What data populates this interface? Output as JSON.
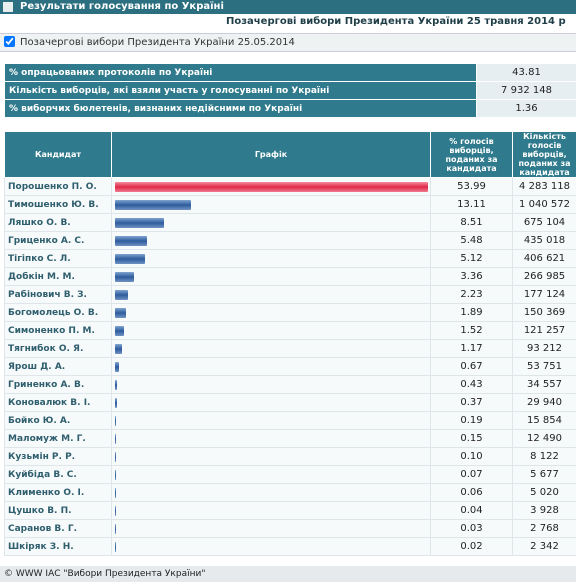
{
  "header": {
    "title": "Результати голосування по Україні",
    "election": "Позачергові вибори Президента України 25 травня 2014 р",
    "filter": "Позачергові вибори Президента України 25.05.2014"
  },
  "summary": {
    "rows": [
      [
        "% опрацьованих протоколів по Україні",
        "43.81"
      ],
      [
        "Кількість виборців, які взяли участь у голосуванні по Україні",
        "7 932 148"
      ],
      [
        "% виборчих бюлетенів, визнаних недійсними по Україні",
        "1.36"
      ]
    ]
  },
  "table": {
    "columns": [
      "Кандидат",
      "Графік",
      "% голосів виборців, поданих за кандидата",
      "Кількість голосів виборців, поданих за кандидата"
    ],
    "rows": [
      [
        "Порошенко П. О.",
        "53.99",
        "4 283 118"
      ],
      [
        "Тимошенко Ю. В.",
        "13.11",
        "1 040 572"
      ],
      [
        "Ляшко О. В.",
        "8.51",
        "675 104"
      ],
      [
        "Гриценко А. С.",
        "5.48",
        "435 018"
      ],
      [
        "Тігіпко С. Л.",
        "5.12",
        "406 621"
      ],
      [
        "Добкін М. М.",
        "3.36",
        "266 985"
      ],
      [
        "Рабінович В. З.",
        "2.23",
        "177 124"
      ],
      [
        "Богомолець О. В.",
        "1.89",
        "150 369"
      ],
      [
        "Симоненко П. М.",
        "1.52",
        "121 257"
      ],
      [
        "Тягнибок О. Я.",
        "1.17",
        "93 212"
      ],
      [
        "Ярош Д. А.",
        "0.67",
        "53 751"
      ],
      [
        "Гриненко А. В.",
        "0.43",
        "34 557"
      ],
      [
        "Коновалюк В. І.",
        "0.37",
        "29 940"
      ],
      [
        "Бойко Ю. А.",
        "0.19",
        "15 854"
      ],
      [
        "Маломуж М. Г.",
        "0.15",
        "12 490"
      ],
      [
        "Кузьмін Р. Р.",
        "0.10",
        "8 122"
      ],
      [
        "Куйбіда В. С.",
        "0.07",
        "5 677"
      ],
      [
        "Клименко О. І.",
        "0.06",
        "5 020"
      ],
      [
        "Цушко В. П.",
        "0.04",
        "3 928"
      ],
      [
        "Саранов В. Г.",
        "0.03",
        "2 768"
      ],
      [
        "Шкіряк З. Н.",
        "0.02",
        "2 342"
      ]
    ]
  },
  "footer": {
    "text": "© WWW ІАС \"Вибори Президента України\""
  }
}
